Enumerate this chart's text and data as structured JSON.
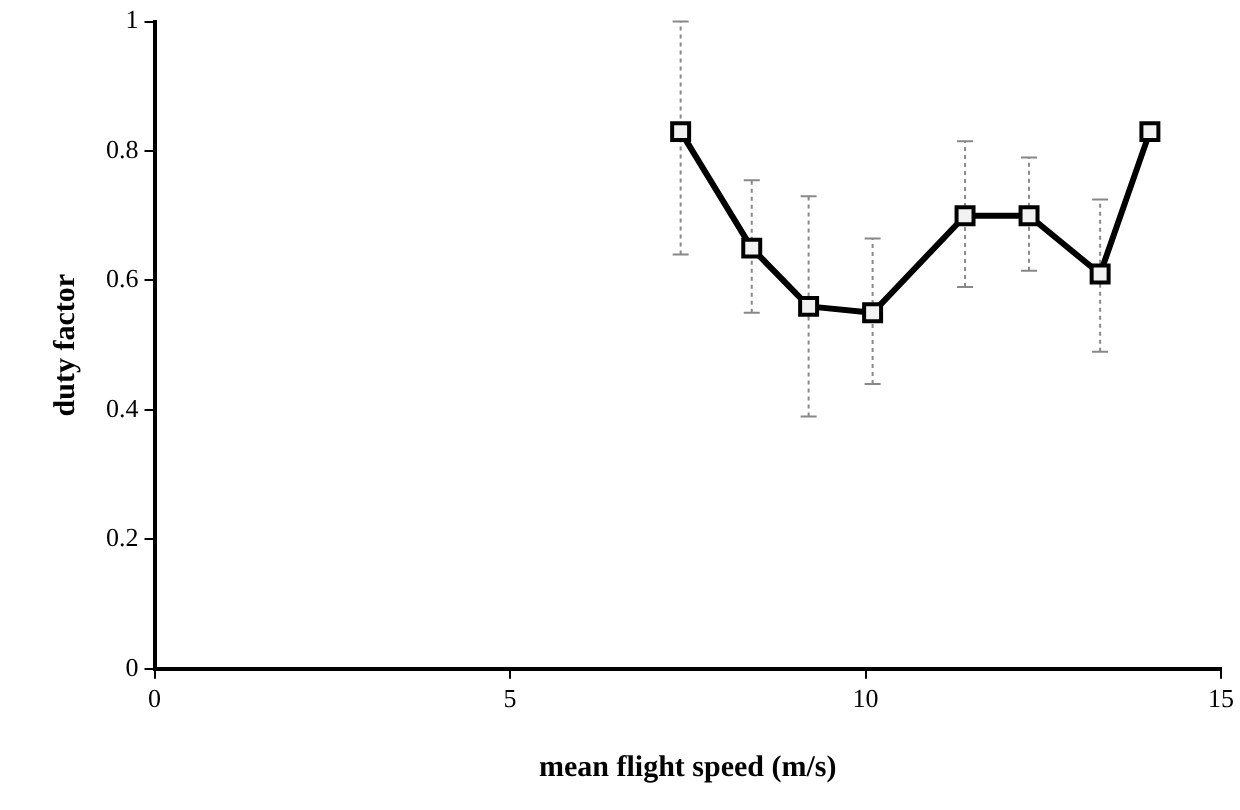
{
  "chart_data": {
    "type": "line",
    "xlabel": "mean flight speed (m/s)",
    "ylabel": "duty factor",
    "x": [
      7.4,
      8.4,
      9.2,
      10.1,
      11.4,
      12.3,
      13.3,
      14.0
    ],
    "series": [
      {
        "color": "#000000",
        "values": [
          0.83,
          0.65,
          0.56,
          0.55,
          0.7,
          0.7,
          0.61,
          0.83
        ],
        "errors": [
          [
            0.64,
            1.0
          ],
          [
            0.55,
            0.755
          ],
          [
            0.39,
            0.73
          ],
          [
            0.44,
            0.665
          ],
          [
            0.59,
            0.815
          ],
          [
            0.615,
            0.79
          ],
          [
            0.49,
            0.725
          ],
          null
        ]
      }
    ],
    "xlim": [
      0,
      15
    ],
    "xticks": [
      0,
      5,
      10,
      15
    ],
    "ylim": [
      0,
      1
    ],
    "yticks": [
      0,
      0.2,
      0.4,
      0.6,
      0.8,
      1
    ],
    "grid": false,
    "legend": false,
    "marker": "square",
    "line_style": "solid"
  }
}
